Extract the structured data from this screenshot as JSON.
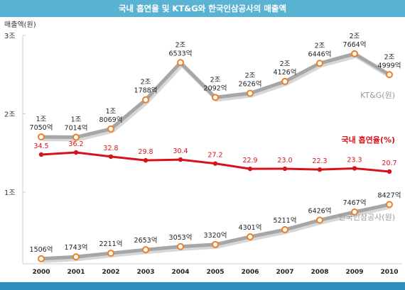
{
  "chart_data": {
    "type": "line",
    "title": "국내 흡연율 및 KT&G와 한국인삼공사의 매출액",
    "ylabel": "매출액(원)",
    "categories": [
      "2000",
      "2001",
      "2002",
      "2003",
      "2004",
      "2005",
      "2006",
      "2007",
      "2008",
      "2009",
      "2010"
    ],
    "y_ticks": [
      "3조",
      "2조",
      "1조"
    ],
    "ylim_won": [
      0,
      3.2
    ],
    "grid": false,
    "series": [
      {
        "name": "KT&G(원)",
        "color": "#a6a6a6",
        "values_trillion": [
          1.705,
          1.7014,
          1.8069,
          2.1788,
          2.6533,
          2.2092,
          2.2626,
          2.4126,
          2.6446,
          2.7664,
          2.4999
        ],
        "labels": [
          [
            "1조",
            "7050억"
          ],
          [
            "1조",
            "7014억"
          ],
          [
            "1조",
            "8069억"
          ],
          [
            "2조",
            "1788억"
          ],
          [
            "2조",
            "6533억"
          ],
          [
            "2조",
            "2092억"
          ],
          [
            "2조",
            "2626억"
          ],
          [
            "2조",
            "4126억"
          ],
          [
            "2조",
            "6446억"
          ],
          [
            "2조",
            "7664억"
          ],
          [
            "2조",
            "4999억"
          ]
        ]
      },
      {
        "name": "국내 흡연율(%)",
        "color": "#d8121b",
        "values_percent": [
          34.5,
          36.2,
          32.8,
          29.8,
          30.4,
          27.2,
          22.9,
          23.0,
          22.3,
          23.3,
          20.7
        ],
        "labels": [
          "34.5",
          "36.2",
          "32.8",
          "29.8",
          "30.4",
          "27.2",
          "22.9",
          "23.0",
          "22.3",
          "23.3",
          "20.7"
        ]
      },
      {
        "name": "한국인삼공사(원)",
        "color": "#a6a6a6",
        "values_trillion": [
          0.1506,
          0.1743,
          0.2211,
          0.2653,
          0.3053,
          0.332,
          0.4301,
          0.5211,
          0.6426,
          0.7467,
          0.8427
        ],
        "labels": [
          "1506억",
          "1743억",
          "2211억",
          "2653억",
          "3053억",
          "3320억",
          "4301억",
          "5211억",
          "6426억",
          "7467억",
          "8427억"
        ]
      }
    ],
    "colors": {
      "title_bar": "#5bb3d3",
      "marker_fill": "#ffffff",
      "marker_stroke": "#f07f22",
      "red_marker": "#d8121b",
      "axis": "#cfcfcf",
      "bottom_bar": "#2d8fc0"
    }
  }
}
